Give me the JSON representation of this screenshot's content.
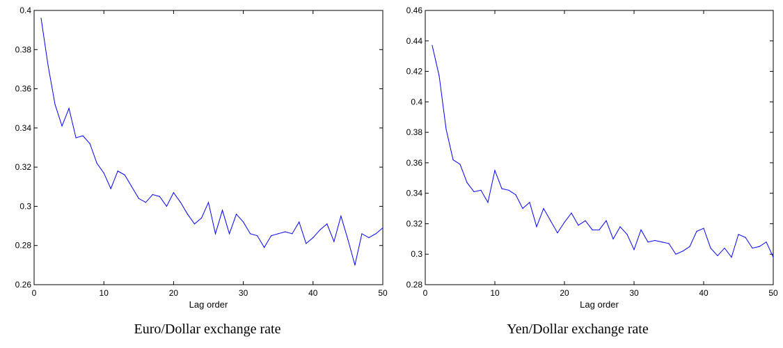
{
  "chart_data": [
    {
      "type": "line",
      "title": "Euro/Dollar exchange rate",
      "xlabel": "Lag order",
      "ylabel": "",
      "xlim": [
        0,
        50
      ],
      "ylim": [
        0.26,
        0.4
      ],
      "xticks": [
        0,
        10,
        20,
        30,
        40,
        50
      ],
      "yticks": [
        0.26,
        0.28,
        0.3,
        0.32,
        0.34,
        0.36,
        0.38,
        0.4
      ],
      "grid": false,
      "line_color": "#0000ff",
      "series": [
        {
          "x": [
            1,
            2,
            3,
            4,
            5,
            6,
            7,
            8,
            9,
            10,
            11,
            12,
            13,
            14,
            15,
            16,
            17,
            18,
            19,
            20,
            21,
            22,
            23,
            24,
            25,
            26,
            27,
            28,
            29,
            30,
            31,
            32,
            33,
            34,
            35,
            36,
            37,
            38,
            39,
            40,
            41,
            42,
            43,
            44,
            45,
            46,
            47,
            48,
            49,
            50
          ],
          "values": [
            0.396,
            0.372,
            0.352,
            0.341,
            0.35,
            0.335,
            0.336,
            0.332,
            0.322,
            0.317,
            0.309,
            0.318,
            0.316,
            0.31,
            0.304,
            0.302,
            0.306,
            0.305,
            0.3,
            0.307,
            0.302,
            0.296,
            0.291,
            0.294,
            0.302,
            0.286,
            0.298,
            0.286,
            0.296,
            0.292,
            0.286,
            0.285,
            0.279,
            0.285,
            0.286,
            0.287,
            0.286,
            0.292,
            0.281,
            0.284,
            0.288,
            0.291,
            0.282,
            0.295,
            0.283,
            0.27,
            0.286,
            0.284,
            0.286,
            0.289
          ]
        }
      ]
    },
    {
      "type": "line",
      "title": "Yen/Dollar exchange rate",
      "xlabel": "Lag order",
      "ylabel": "",
      "xlim": [
        0,
        50
      ],
      "ylim": [
        0.28,
        0.46
      ],
      "xticks": [
        0,
        10,
        20,
        30,
        40,
        50
      ],
      "yticks": [
        0.28,
        0.3,
        0.32,
        0.34,
        0.36,
        0.38,
        0.4,
        0.42,
        0.44,
        0.46
      ],
      "grid": false,
      "line_color": "#0000ff",
      "series": [
        {
          "x": [
            1,
            2,
            3,
            4,
            5,
            6,
            7,
            8,
            9,
            10,
            11,
            12,
            13,
            14,
            15,
            16,
            17,
            18,
            19,
            20,
            21,
            22,
            23,
            24,
            25,
            26,
            27,
            28,
            29,
            30,
            31,
            32,
            33,
            34,
            35,
            36,
            37,
            38,
            39,
            40,
            41,
            42,
            43,
            44,
            45,
            46,
            47,
            48,
            49,
            50
          ],
          "values": [
            0.437,
            0.417,
            0.382,
            0.362,
            0.359,
            0.347,
            0.341,
            0.342,
            0.334,
            0.355,
            0.343,
            0.342,
            0.339,
            0.33,
            0.334,
            0.318,
            0.33,
            0.322,
            0.314,
            0.321,
            0.327,
            0.319,
            0.322,
            0.316,
            0.316,
            0.322,
            0.31,
            0.318,
            0.313,
            0.303,
            0.316,
            0.308,
            0.309,
            0.308,
            0.307,
            0.3,
            0.302,
            0.305,
            0.315,
            0.317,
            0.304,
            0.299,
            0.304,
            0.298,
            0.313,
            0.311,
            0.304,
            0.305,
            0.308,
            0.298
          ]
        }
      ]
    }
  ]
}
